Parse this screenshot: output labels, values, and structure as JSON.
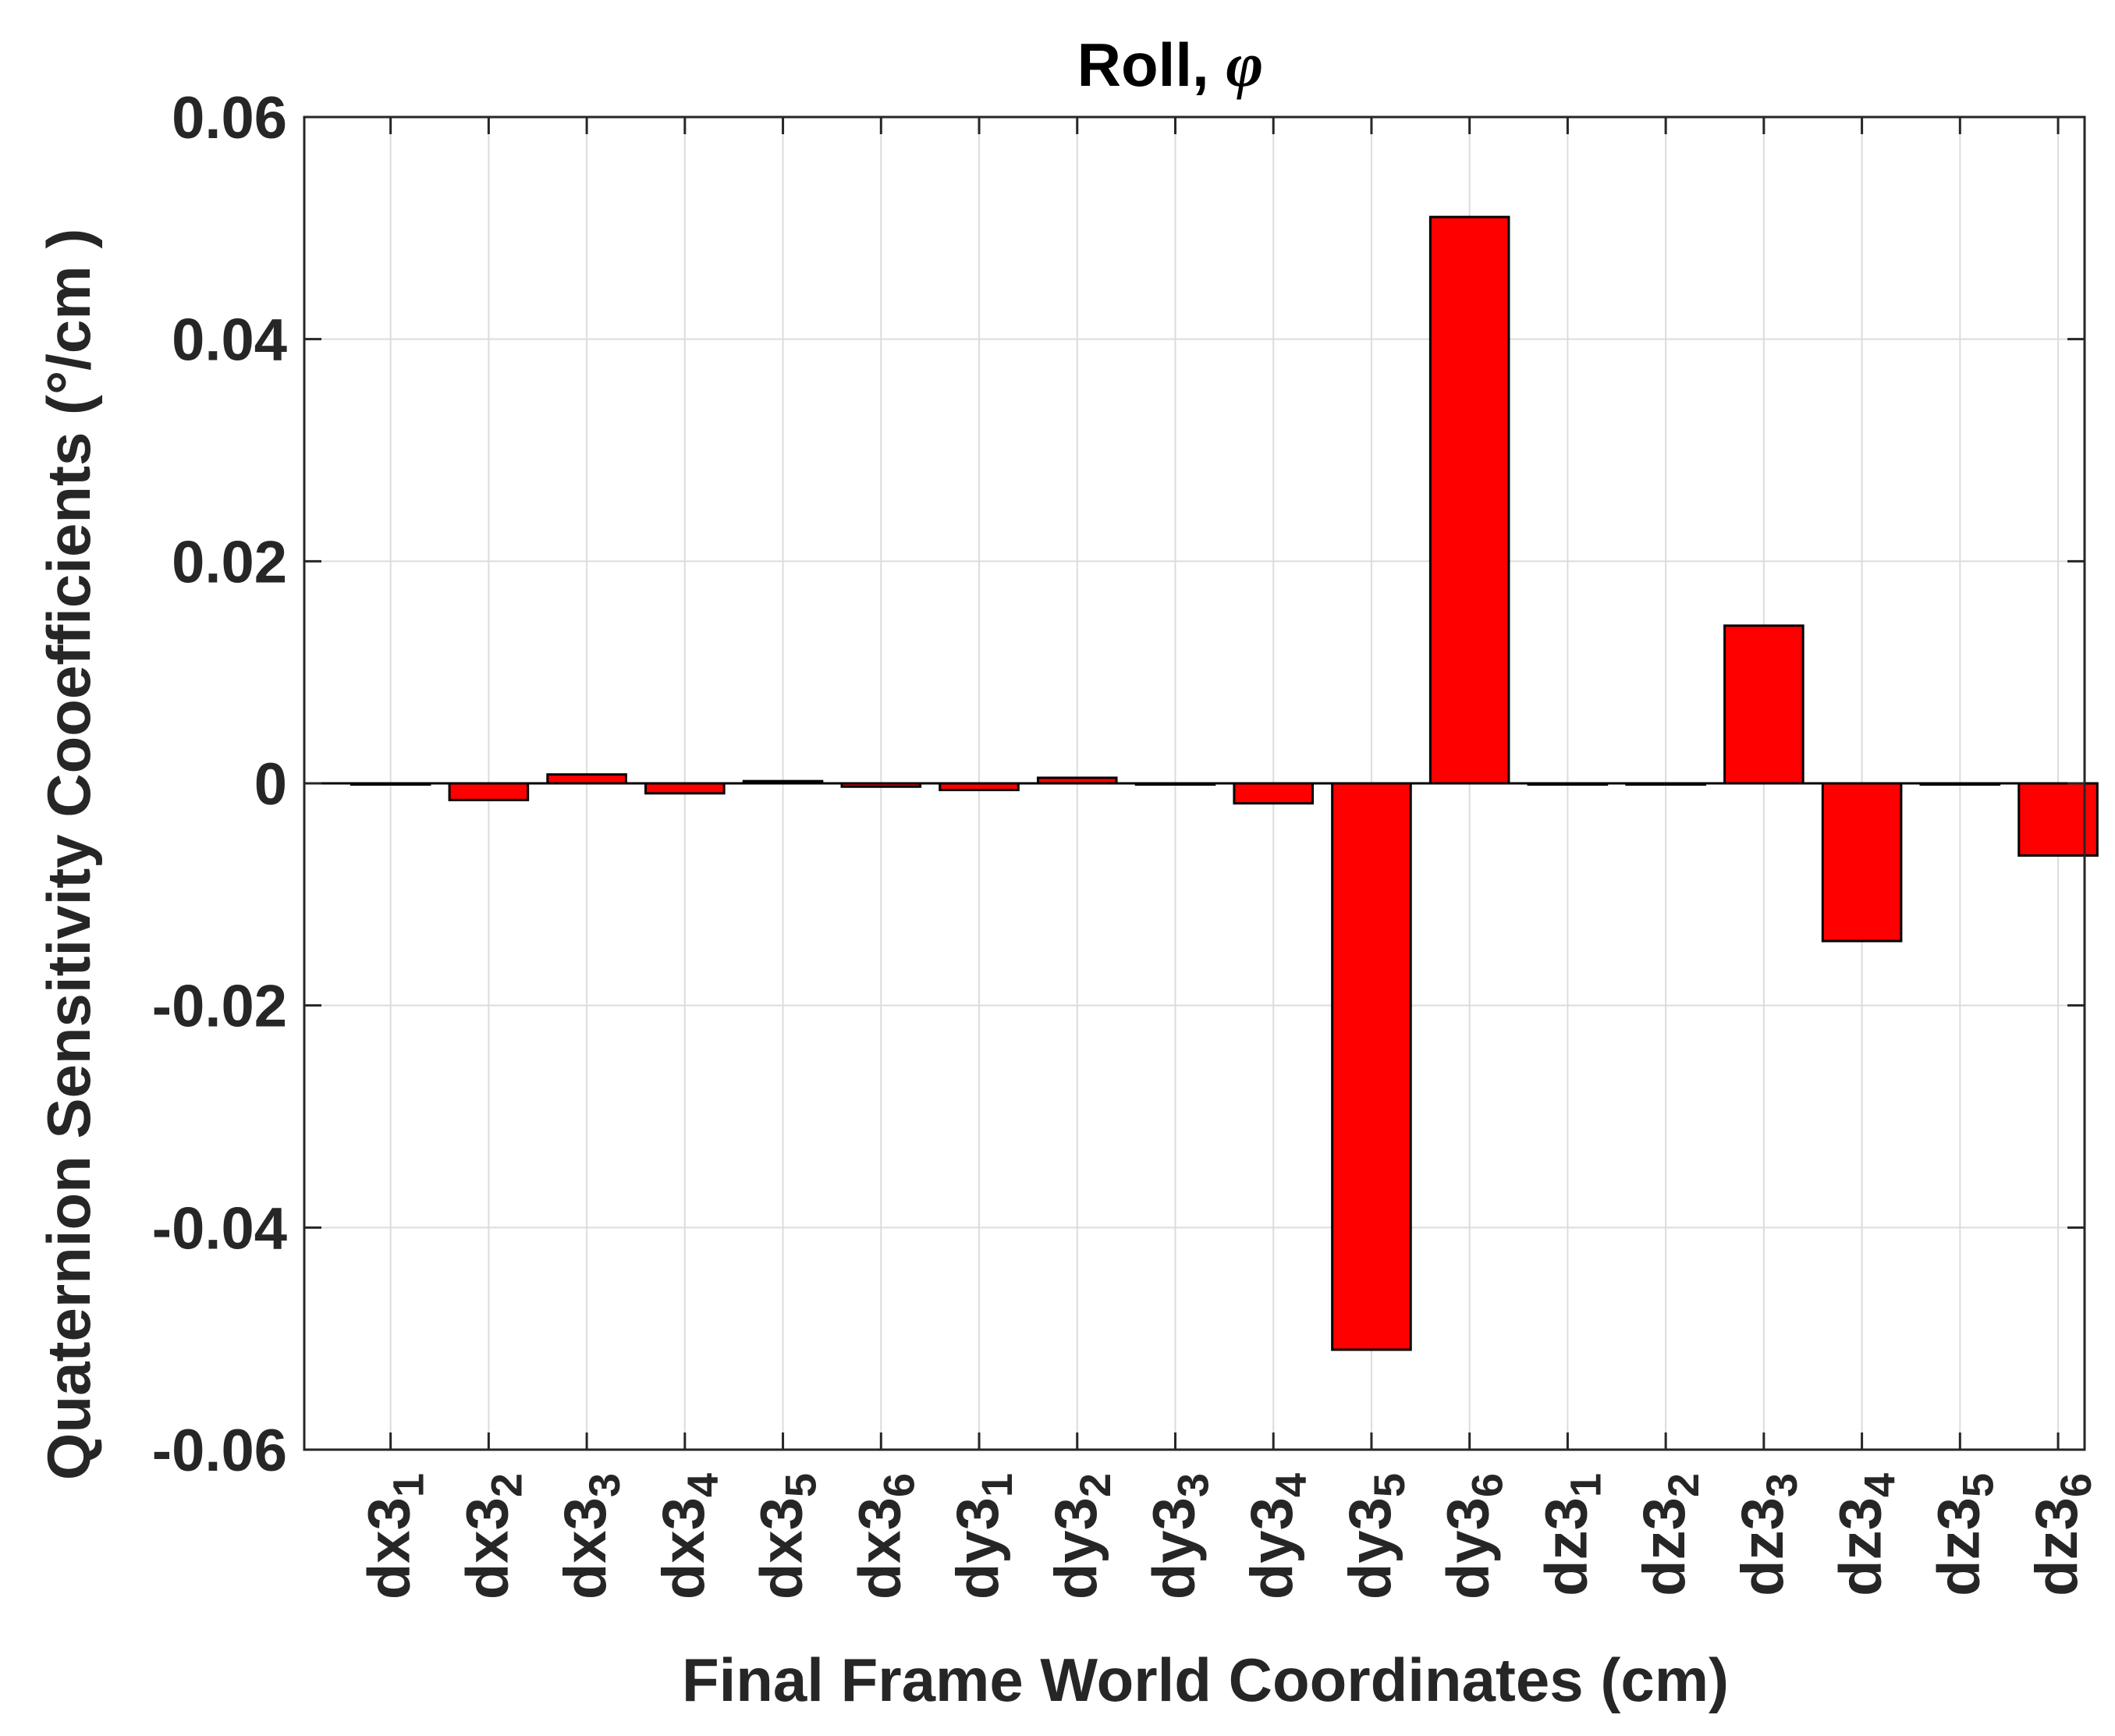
{
  "chart_data": {
    "type": "bar",
    "title": "Roll, ",
    "title_symbol": "φ",
    "xlabel": "Final Frame World Coordinates (cm)",
    "ylabel": "Quaternion Sensitivity Cooefficients (°/cm )",
    "ylim": [
      -0.06,
      0.06
    ],
    "yticks": [
      "-0.06",
      "-0.04",
      "-0.02",
      "0",
      "0.02",
      "0.04",
      "0.06"
    ],
    "grid": true,
    "legend": "none",
    "categories": [
      {
        "base": "dx3",
        "sub": "1"
      },
      {
        "base": "dx3",
        "sub": "2"
      },
      {
        "base": "dx3",
        "sub": "3"
      },
      {
        "base": "dx3",
        "sub": "4"
      },
      {
        "base": "dx3",
        "sub": "5"
      },
      {
        "base": "dx3",
        "sub": "6"
      },
      {
        "base": "dy3",
        "sub": "1"
      },
      {
        "base": "dy3",
        "sub": "2"
      },
      {
        "base": "dy3",
        "sub": "3"
      },
      {
        "base": "dy3",
        "sub": "4"
      },
      {
        "base": "dy3",
        "sub": "5"
      },
      {
        "base": "dy3",
        "sub": "6"
      },
      {
        "base": "dz3",
        "sub": "1"
      },
      {
        "base": "dz3",
        "sub": "2"
      },
      {
        "base": "dz3",
        "sub": "3"
      },
      {
        "base": "dz3",
        "sub": "4"
      },
      {
        "base": "dz3",
        "sub": "5"
      },
      {
        "base": "dz3",
        "sub": "6"
      }
    ],
    "values": [
      0,
      -0.0015,
      0.0008,
      -0.0009,
      0.0002,
      -0.0003,
      -0.0006,
      0.0005,
      0,
      -0.0018,
      -0.051,
      0.051,
      0,
      0,
      0.0142,
      -0.0142,
      0,
      -0.0065
    ],
    "colors": {
      "bar": "#ff0000",
      "edge": "#000000",
      "axis": "#262626",
      "grid": "#dcdcdc"
    }
  }
}
